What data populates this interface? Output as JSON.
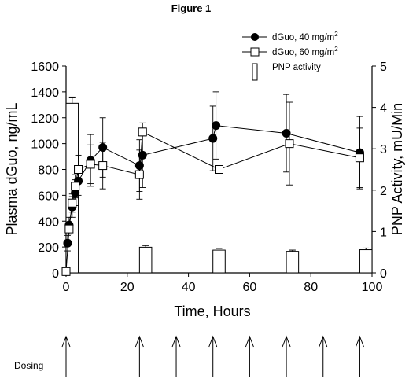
{
  "chart_data": {
    "type": "line",
    "title": "Figure 1",
    "xlabel": "Time, Hours",
    "ylabel": "Plasma dGuo, ng/mL",
    "ylabel_right": "PNP Activity, mU/Min",
    "xlim": [
      0,
      100
    ],
    "ylim": [
      0,
      1600
    ],
    "ylim_right": [
      0,
      5
    ],
    "x_ticks": [
      0,
      20,
      40,
      60,
      80,
      100
    ],
    "y_ticks": [
      0,
      200,
      400,
      600,
      800,
      1000,
      1200,
      1400,
      1600
    ],
    "y_ticks_right": [
      0,
      1,
      2,
      3,
      4,
      5
    ],
    "grid": false,
    "legend_position": "top-right",
    "series": [
      {
        "name": "dGuo, 40 mg/m",
        "name_sup": "2",
        "marker": "filled-circle",
        "color": "#000000",
        "points": [
          {
            "x": 0.5,
            "y": 230,
            "err": 60
          },
          {
            "x": 1,
            "y": 370,
            "err": 60
          },
          {
            "x": 2,
            "y": 510,
            "err": 80
          },
          {
            "x": 3,
            "y": 620,
            "err": 100
          },
          {
            "x": 4,
            "y": 710,
            "err": 110
          },
          {
            "x": 8,
            "y": 870,
            "err": 200
          },
          {
            "x": 12,
            "y": 970,
            "err": 230
          },
          {
            "x": 24,
            "y": 830,
            "err": 200
          },
          {
            "x": 25,
            "y": 910,
            "err": 250
          },
          {
            "x": 48,
            "y": 1040,
            "err": 250
          },
          {
            "x": 49,
            "y": 1140,
            "err": 260
          },
          {
            "x": 72,
            "y": 1080,
            "err": 300
          },
          {
            "x": 96,
            "y": 930,
            "err": 280
          }
        ]
      },
      {
        "name": "dGuo,  60 mg/m",
        "name_sup": "2",
        "marker": "open-square",
        "color": "#000000",
        "points": [
          {
            "x": 0,
            "y": 10,
            "err": 0
          },
          {
            "x": 1,
            "y": 340,
            "err": 40
          },
          {
            "x": 2,
            "y": 540,
            "err": 70
          },
          {
            "x": 3,
            "y": 670,
            "err": 90
          },
          {
            "x": 4,
            "y": 800,
            "err": 110
          },
          {
            "x": 8,
            "y": 840,
            "err": 150
          },
          {
            "x": 12,
            "y": 830,
            "err": 180
          },
          {
            "x": 24,
            "y": 760,
            "err": 190
          },
          {
            "x": 25,
            "y": 1090,
            "err": 30
          },
          {
            "x": 50,
            "y": 800,
            "err": 30
          },
          {
            "x": 73,
            "y": 1000,
            "err": 320
          },
          {
            "x": 96,
            "y": 890,
            "err": 230
          }
        ]
      },
      {
        "name": "PNP activity",
        "type": "bar",
        "axis": "right",
        "bar_width_hours": 4,
        "bars": [
          {
            "x": 2,
            "value": 4.1,
            "err": 0.15
          },
          {
            "x": 26,
            "value": 0.62,
            "err": 0.04
          },
          {
            "x": 50,
            "value": 0.55,
            "err": 0.04
          },
          {
            "x": 74,
            "value": 0.52,
            "err": 0.03
          },
          {
            "x": 98,
            "value": 0.56,
            "err": 0.04
          }
        ]
      }
    ],
    "dosing": {
      "label": "Dosing",
      "times": [
        0,
        24,
        36,
        48,
        60,
        72,
        84,
        96
      ]
    }
  }
}
